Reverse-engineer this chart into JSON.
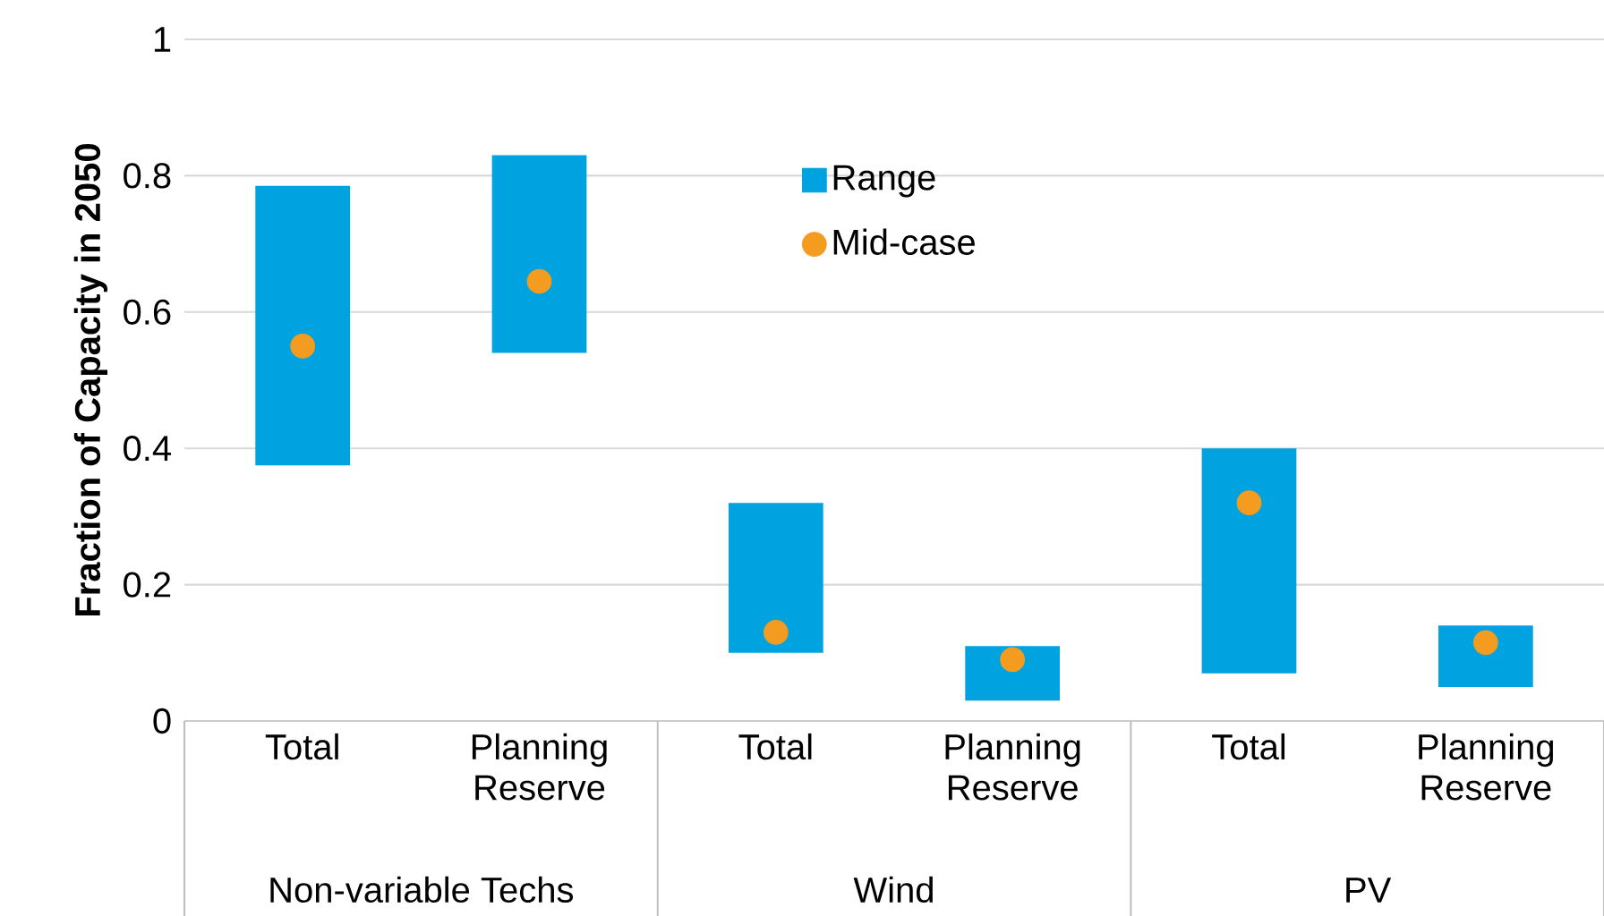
{
  "chart_data": {
    "type": "bar",
    "ylabel": "Fraction of Capacity in 2050",
    "categories": [
      "Total",
      "Planning Reserve",
      "Total",
      "Planning Reserve",
      "Total",
      "Planning Reserve"
    ],
    "series": [
      {
        "name": "Range",
        "type": "bar",
        "color": "#00a2e0",
        "base": [
          0.375,
          0.54,
          0.1,
          0.03,
          0.07,
          0.05
        ],
        "values": [
          0.41,
          0.29,
          0.22,
          0.08,
          0.33,
          0.09
        ]
      },
      {
        "name": "Mid-case",
        "type": "scatter",
        "color": "#f39c1f",
        "marker": "circle",
        "values": [
          0.55,
          0.645,
          0.13,
          0.09,
          0.32,
          0.115
        ]
      }
    ],
    "annotations": [
      "Non-variable Techs",
      "Wind",
      "PV"
    ],
    "ylim": [
      0,
      1
    ],
    "yticks": [
      0,
      0.2,
      0.4,
      0.6,
      0.8,
      1
    ],
    "grid": "y",
    "legend": "top"
  }
}
